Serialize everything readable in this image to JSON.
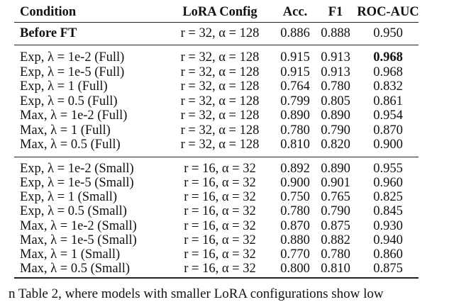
{
  "table": {
    "header": [
      "Condition",
      "LoRA Config",
      "Acc.",
      "F1",
      "ROC-AUC"
    ],
    "groups": [
      [
        [
          "Before FT",
          "r = 32, α = 128",
          "0.886",
          "0.888",
          "0.950"
        ]
      ],
      [
        [
          "Exp, λ = 1e-2 (Full)",
          "r = 32, α = 128",
          "0.915",
          "0.913",
          "0.968"
        ],
        [
          "Exp, λ = 1e-5 (Full)",
          "r = 32, α = 128",
          "0.915",
          "0.913",
          "0.968"
        ],
        [
          "Exp, λ = 1 (Full)",
          "r = 32, α = 128",
          "0.764",
          "0.780",
          "0.832"
        ],
        [
          "Exp, λ = 0.5 (Full)",
          "r = 32, α = 128",
          "0.799",
          "0.805",
          "0.861"
        ],
        [
          "Max, λ = 1e-2 (Full)",
          "r = 32, α = 128",
          "0.890",
          "0.890",
          "0.954"
        ],
        [
          "Max, λ = 1 (Full)",
          "r = 32, α = 128",
          "0.780",
          "0.790",
          "0.870"
        ],
        [
          "Max, λ = 0.5 (Full)",
          "r = 32, α = 128",
          "0.810",
          "0.820",
          "0.900"
        ]
      ],
      [
        [
          "Exp, λ = 1e-2 (Small)",
          "r = 16, α = 32",
          "0.892",
          "0.890",
          "0.955"
        ],
        [
          "Exp, λ = 1e-5 (Small)",
          "r = 16, α = 32",
          "0.900",
          "0.901",
          "0.960"
        ],
        [
          "Exp, λ = 1 (Small)",
          "r = 16, α = 32",
          "0.750",
          "0.765",
          "0.825"
        ],
        [
          "Exp, λ = 0.5 (Small)",
          "r = 16, α = 32",
          "0.780",
          "0.790",
          "0.845"
        ],
        [
          "Max, λ = 1e-2 (Small)",
          "r = 16, α = 32",
          "0.870",
          "0.875",
          "0.930"
        ],
        [
          "Max, λ = 1e-5 (Small)",
          "r = 16, α = 32",
          "0.880",
          "0.882",
          "0.940"
        ],
        [
          "Max, λ = 1 (Small)",
          "r = 16, α = 32",
          "0.770",
          "0.780",
          "0.860"
        ],
        [
          "Max, λ = 0.5 (Small)",
          "r = 16, α = 32",
          "0.800",
          "0.810",
          "0.875"
        ]
      ]
    ]
  },
  "footer_text": "n Table 2, where models with smaller LoRA configurations show low"
}
